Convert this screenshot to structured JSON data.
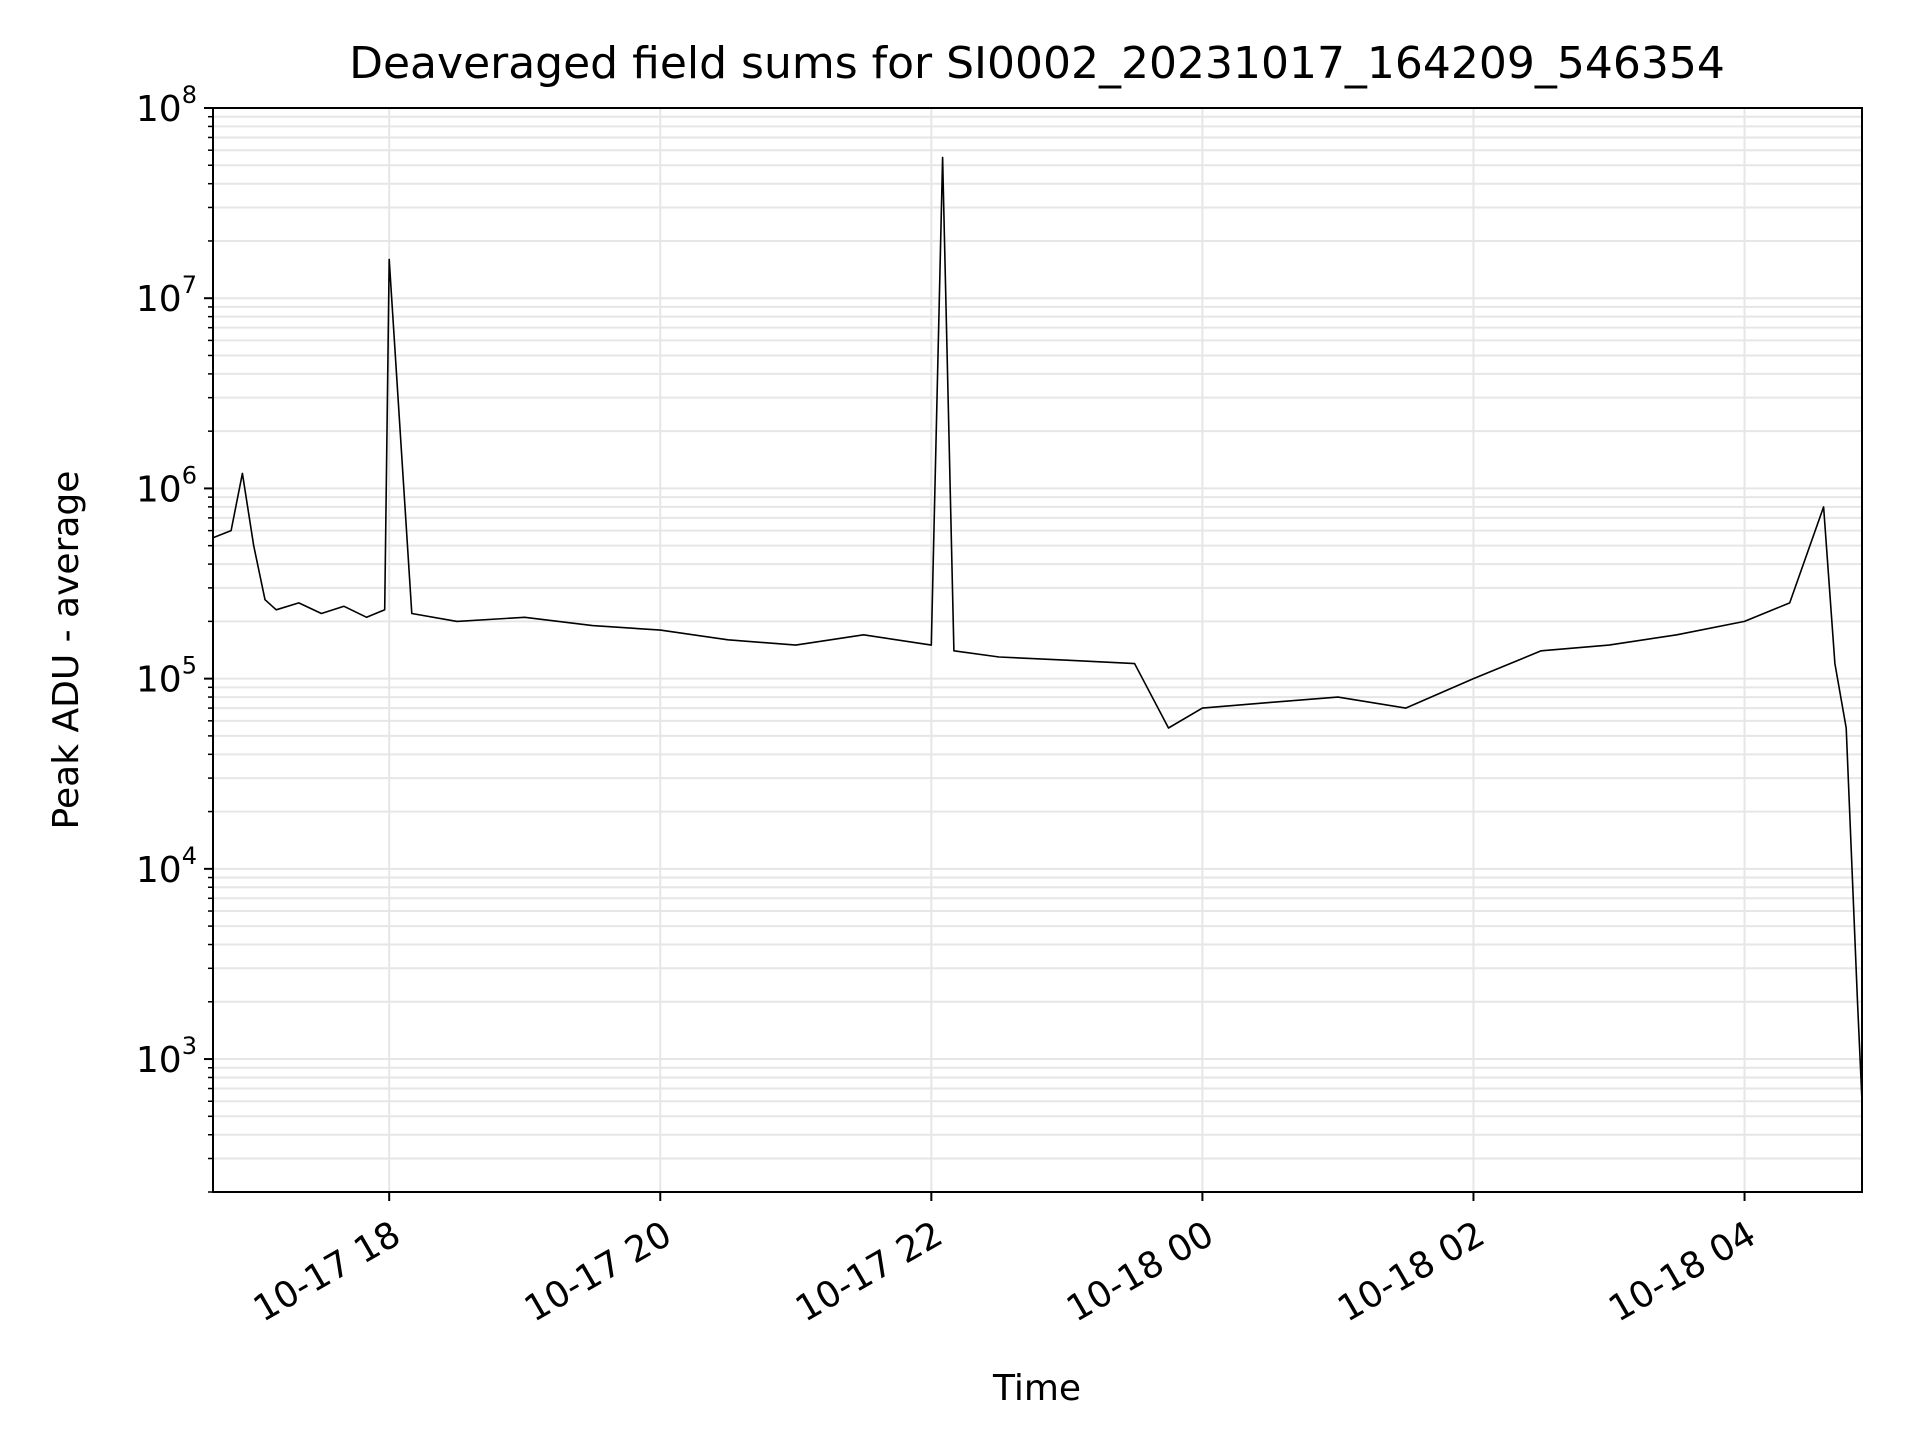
{
  "chart_data": {
    "type": "line",
    "title": "Deaveraged field sums for SI0002_20231017_164209_546354",
    "xlabel": "Time",
    "ylabel": "Peak ADU - average",
    "yscale": "log",
    "ylim": [
      200,
      100000000
    ],
    "xlim": [
      "2023-10-17 16:42",
      "2023-10-18 04:52"
    ],
    "grid": true,
    "line_color": "#000000",
    "x_ticks": [
      {
        "label": "10-17 18",
        "time": "2023-10-17 18:00"
      },
      {
        "label": "10-17 20",
        "time": "2023-10-17 20:00"
      },
      {
        "label": "10-17 22",
        "time": "2023-10-17 22:00"
      },
      {
        "label": "10-18 00",
        "time": "2023-10-18 00:00"
      },
      {
        "label": "10-18 02",
        "time": "2023-10-18 02:00"
      },
      {
        "label": "10-18 04",
        "time": "2023-10-18 04:00"
      }
    ],
    "y_ticks": [
      {
        "base": "10",
        "exp": "3",
        "value": 1000
      },
      {
        "base": "10",
        "exp": "4",
        "value": 10000
      },
      {
        "base": "10",
        "exp": "5",
        "value": 100000
      },
      {
        "base": "10",
        "exp": "6",
        "value": 1000000
      },
      {
        "base": "10",
        "exp": "7",
        "value": 10000000
      },
      {
        "base": "10",
        "exp": "8",
        "value": 100000000
      }
    ],
    "series": [
      {
        "x": [
          "2023-10-17 16:42",
          "2023-10-17 16:50",
          "2023-10-17 16:55",
          "2023-10-17 17:00",
          "2023-10-17 17:05",
          "2023-10-17 17:10",
          "2023-10-17 17:20",
          "2023-10-17 17:30",
          "2023-10-17 17:40",
          "2023-10-17 17:50",
          "2023-10-17 17:58",
          "2023-10-17 18:00",
          "2023-10-17 18:10",
          "2023-10-17 18:30",
          "2023-10-17 19:00",
          "2023-10-17 19:30",
          "2023-10-17 20:00",
          "2023-10-17 20:30",
          "2023-10-17 21:00",
          "2023-10-17 21:30",
          "2023-10-17 22:00",
          "2023-10-17 22:05",
          "2023-10-17 22:10",
          "2023-10-17 22:30",
          "2023-10-17 23:00",
          "2023-10-17 23:30",
          "2023-10-17 23:45",
          "2023-10-18 00:00",
          "2023-10-18 00:30",
          "2023-10-18 01:00",
          "2023-10-18 01:30",
          "2023-10-18 02:00",
          "2023-10-18 02:30",
          "2023-10-18 03:00",
          "2023-10-18 03:30",
          "2023-10-18 04:00",
          "2023-10-18 04:20",
          "2023-10-18 04:35",
          "2023-10-18 04:40",
          "2023-10-18 04:45",
          "2023-10-18 04:50",
          "2023-10-18 04:52"
        ],
        "y": [
          550000,
          600000,
          1200000,
          500000,
          260000,
          230000,
          250000,
          220000,
          240000,
          210000,
          230000,
          16000000,
          220000,
          200000,
          210000,
          190000,
          180000,
          160000,
          150000,
          170000,
          150000,
          55000000,
          140000,
          130000,
          125000,
          120000,
          55000,
          70000,
          75000,
          80000,
          70000,
          100000,
          140000,
          150000,
          170000,
          200000,
          250000,
          800000,
          120000,
          55000,
          2000,
          600
        ]
      }
    ]
  }
}
